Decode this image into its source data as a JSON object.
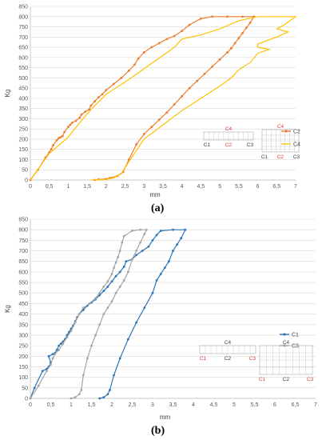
{
  "chart_data": [
    {
      "panel_label": "(a)",
      "type": "line",
      "xlabel": "mm",
      "ylabel": "Kg",
      "xlim": [
        0,
        7
      ],
      "ylim": [
        0,
        850
      ],
      "x_ticks": [
        "0",
        "0,5",
        "1",
        "1,5",
        "2",
        "2,5",
        "3",
        "3,5",
        "4",
        "4,5",
        "5",
        "5,5",
        "6",
        "6,5",
        "7"
      ],
      "y_ticks": [
        "0",
        "50",
        "100",
        "150",
        "200",
        "250",
        "300",
        "350",
        "400",
        "450",
        "500",
        "550",
        "600",
        "650",
        "700",
        "750",
        "800",
        "850"
      ],
      "grid": true,
      "legend_position": "right",
      "series": [
        {
          "name": "C2",
          "color": "#ED7D31",
          "markers": true,
          "points": [
            [
              0,
              0
            ],
            [
              0.2,
              50
            ],
            [
              0.4,
              110
            ],
            [
              0.5,
              135
            ],
            [
              0.55,
              150
            ],
            [
              0.6,
              170
            ],
            [
              0.7,
              195
            ],
            [
              0.75,
              205
            ],
            [
              0.8,
              210
            ],
            [
              0.85,
              215
            ],
            [
              0.9,
              235
            ],
            [
              1.0,
              260
            ],
            [
              1.05,
              270
            ],
            [
              1.1,
              280
            ],
            [
              1.2,
              290
            ],
            [
              1.3,
              305
            ],
            [
              1.35,
              320
            ],
            [
              1.45,
              335
            ],
            [
              1.55,
              345
            ],
            [
              1.6,
              365
            ],
            [
              1.7,
              385
            ],
            [
              1.8,
              405
            ],
            [
              1.9,
              420
            ],
            [
              2.0,
              440
            ],
            [
              2.2,
              470
            ],
            [
              2.4,
              500
            ],
            [
              2.6,
              535
            ],
            [
              2.75,
              565
            ],
            [
              2.85,
              595
            ],
            [
              3.0,
              625
            ],
            [
              3.2,
              650
            ],
            [
              3.4,
              670
            ],
            [
              3.6,
              690
            ],
            [
              3.8,
              705
            ],
            [
              4.0,
              730
            ],
            [
              4.2,
              760
            ],
            [
              4.5,
              790
            ],
            [
              4.8,
              800
            ],
            [
              5.2,
              800
            ],
            [
              5.6,
              800
            ],
            [
              5.9,
              800
            ],
            [
              5.9,
              800
            ],
            [
              5.8,
              770
            ],
            [
              5.7,
              745
            ],
            [
              5.6,
              720
            ],
            [
              5.5,
              695
            ],
            [
              5.4,
              670
            ],
            [
              5.3,
              645
            ],
            [
              5.2,
              625
            ],
            [
              5.0,
              590
            ],
            [
              4.8,
              555
            ],
            [
              4.6,
              520
            ],
            [
              4.4,
              485
            ],
            [
              4.2,
              450
            ],
            [
              4.0,
              410
            ],
            [
              3.8,
              370
            ],
            [
              3.6,
              330
            ],
            [
              3.4,
              295
            ],
            [
              3.2,
              260
            ],
            [
              3.0,
              225
            ],
            [
              2.8,
              175
            ],
            [
              2.6,
              100
            ],
            [
              2.45,
              40
            ],
            [
              2.3,
              20
            ],
            [
              2.1,
              10
            ],
            [
              2.0,
              5
            ],
            [
              1.8,
              3
            ],
            [
              1.7,
              0
            ]
          ]
        },
        {
          "name": "C4",
          "color": "#FFC000",
          "markers": false,
          "points": [
            [
              0,
              0
            ],
            [
              0.5,
              130
            ],
            [
              1.0,
              210
            ],
            [
              1.3,
              280
            ],
            [
              1.6,
              345
            ],
            [
              2.0,
              420
            ],
            [
              2.5,
              480
            ],
            [
              3.0,
              545
            ],
            [
              3.5,
              610
            ],
            [
              3.8,
              650
            ],
            [
              4.0,
              690
            ],
            [
              4.5,
              710
            ],
            [
              5.0,
              740
            ],
            [
              5.5,
              780
            ],
            [
              6.0,
              800
            ],
            [
              6.5,
              800
            ],
            [
              7.0,
              800
            ],
            [
              6.7,
              760
            ],
            [
              6.5,
              740
            ],
            [
              6.8,
              725
            ],
            [
              6.5,
              700
            ],
            [
              6.2,
              680
            ],
            [
              6.0,
              665
            ],
            [
              6.0,
              650
            ],
            [
              6.3,
              640
            ],
            [
              6.0,
              620
            ],
            [
              5.8,
              575
            ],
            [
              5.5,
              540
            ],
            [
              5.3,
              500
            ],
            [
              5.0,
              460
            ],
            [
              4.5,
              400
            ],
            [
              4.0,
              340
            ],
            [
              3.5,
              270
            ],
            [
              3.0,
              200
            ],
            [
              2.6,
              90
            ],
            [
              2.4,
              30
            ],
            [
              2.2,
              10
            ],
            [
              2.0,
              3
            ],
            [
              1.6,
              0
            ]
          ]
        }
      ],
      "inset": {
        "left_top": "C4",
        "left_bottom": [
          "C1",
          "C2",
          "C3"
        ],
        "right_top": "C4",
        "right_bottom": [
          "C1",
          "C2",
          "C3"
        ]
      }
    },
    {
      "panel_label": "(b)",
      "type": "line",
      "xlabel": "mm",
      "ylabel": "Kg",
      "xlim": [
        0,
        7
      ],
      "ylim": [
        0,
        850
      ],
      "x_ticks": [
        "0",
        "0,5",
        "1",
        "1,5",
        "2",
        "2,5",
        "3",
        "3,5",
        "4",
        "4,5",
        "5",
        "5,5",
        "6",
        "6,5",
        "7"
      ],
      "y_ticks": [
        "0",
        "50",
        "100",
        "150",
        "200",
        "250",
        "300",
        "350",
        "400",
        "450",
        "500",
        "550",
        "600",
        "650",
        "700",
        "750",
        "800",
        "850"
      ],
      "grid": true,
      "legend_position": "right",
      "series": [
        {
          "name": "C1",
          "color": "#2E75B6",
          "markers": true,
          "points": [
            [
              0,
              0
            ],
            [
              0.1,
              50
            ],
            [
              0.3,
              130
            ],
            [
              0.4,
              140
            ],
            [
              0.45,
              150
            ],
            [
              0.5,
              170
            ],
            [
              0.45,
              200
            ],
            [
              0.55,
              210
            ],
            [
              0.6,
              215
            ],
            [
              0.65,
              230
            ],
            [
              0.7,
              250
            ],
            [
              0.75,
              260
            ],
            [
              0.8,
              270
            ],
            [
              0.85,
              280
            ],
            [
              0.9,
              300
            ],
            [
              0.95,
              315
            ],
            [
              1.0,
              330
            ],
            [
              1.05,
              345
            ],
            [
              1.1,
              365
            ],
            [
              1.15,
              385
            ],
            [
              1.2,
              400
            ],
            [
              1.3,
              420
            ],
            [
              1.4,
              440
            ],
            [
              1.5,
              455
            ],
            [
              1.6,
              470
            ],
            [
              1.7,
              490
            ],
            [
              1.8,
              510
            ],
            [
              1.9,
              530
            ],
            [
              2.0,
              555
            ],
            [
              2.1,
              580
            ],
            [
              2.2,
              600
            ],
            [
              2.3,
              625
            ],
            [
              2.35,
              650
            ],
            [
              2.5,
              660
            ],
            [
              2.6,
              680
            ],
            [
              2.75,
              700
            ],
            [
              2.9,
              720
            ],
            [
              3.0,
              750
            ],
            [
              3.1,
              775
            ],
            [
              3.2,
              795
            ],
            [
              3.5,
              800
            ],
            [
              3.8,
              800
            ],
            [
              3.8,
              800
            ],
            [
              3.7,
              760
            ],
            [
              3.6,
              730
            ],
            [
              3.5,
              700
            ],
            [
              3.4,
              650
            ],
            [
              3.3,
              620
            ],
            [
              3.2,
              590
            ],
            [
              3.1,
              560
            ],
            [
              3.0,
              500
            ],
            [
              2.8,
              430
            ],
            [
              2.6,
              360
            ],
            [
              2.4,
              280
            ],
            [
              2.2,
              190
            ],
            [
              2.05,
              110
            ],
            [
              1.95,
              40
            ],
            [
              1.9,
              20
            ],
            [
              1.8,
              5
            ],
            [
              1.7,
              0
            ]
          ]
        },
        {
          "name": "C3",
          "color": "#A5A5A5",
          "markers": true,
          "points": [
            [
              0,
              0
            ],
            [
              0.2,
              60
            ],
            [
              0.4,
              130
            ],
            [
              0.5,
              160
            ],
            [
              0.55,
              190
            ],
            [
              0.6,
              210
            ],
            [
              0.7,
              230
            ],
            [
              0.8,
              260
            ],
            [
              0.9,
              290
            ],
            [
              1.0,
              320
            ],
            [
              1.1,
              360
            ],
            [
              1.2,
              400
            ],
            [
              1.3,
              430
            ],
            [
              1.45,
              450
            ],
            [
              1.6,
              475
            ],
            [
              1.7,
              500
            ],
            [
              1.8,
              530
            ],
            [
              1.9,
              555
            ],
            [
              2.0,
              590
            ],
            [
              2.05,
              620
            ],
            [
              2.1,
              645
            ],
            [
              2.15,
              670
            ],
            [
              2.2,
              700
            ],
            [
              2.25,
              740
            ],
            [
              2.3,
              770
            ],
            [
              2.5,
              795
            ],
            [
              2.7,
              800
            ],
            [
              2.85,
              800
            ],
            [
              2.8,
              780
            ],
            [
              2.7,
              740
            ],
            [
              2.6,
              700
            ],
            [
              2.5,
              660
            ],
            [
              2.4,
              600
            ],
            [
              2.3,
              560
            ],
            [
              2.2,
              530
            ],
            [
              2.1,
              500
            ],
            [
              2.0,
              460
            ],
            [
              1.9,
              430
            ],
            [
              1.8,
              400
            ],
            [
              1.7,
              350
            ],
            [
              1.6,
              300
            ],
            [
              1.5,
              250
            ],
            [
              1.4,
              190
            ],
            [
              1.3,
              110
            ],
            [
              1.25,
              40
            ],
            [
              1.2,
              20
            ],
            [
              1.1,
              5
            ],
            [
              1.0,
              0
            ]
          ]
        }
      ],
      "inset": {
        "left_top": "C4",
        "left_bottom": [
          "C1",
          "C2",
          "C3"
        ],
        "right_top": "C4",
        "right_bottom": [
          "C1",
          "C2",
          "C3"
        ]
      }
    }
  ]
}
